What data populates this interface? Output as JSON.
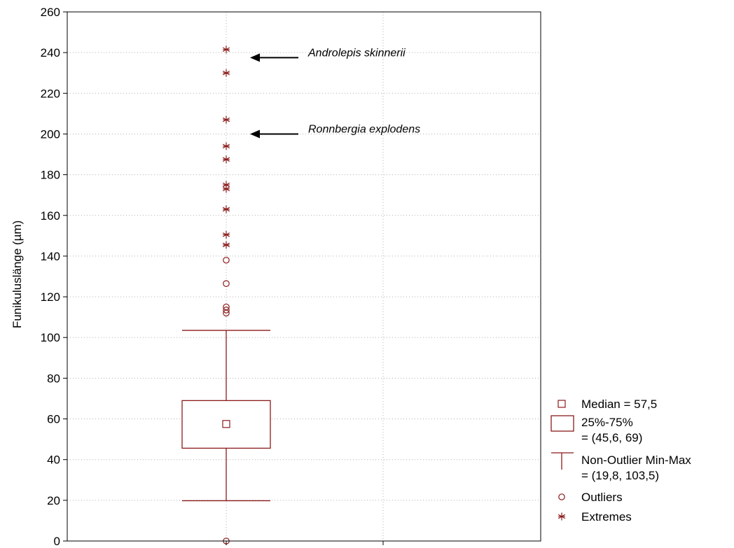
{
  "chart_data": {
    "type": "box",
    "title": "",
    "xlabel": "",
    "ylabel": "Funikuluslänge (µm)",
    "ylim": [
      0,
      260
    ],
    "yticks": [
      0,
      20,
      40,
      60,
      80,
      100,
      120,
      140,
      160,
      180,
      200,
      220,
      240,
      260
    ],
    "grid": true,
    "box": {
      "median": 57.5,
      "q1": 45.6,
      "q3": 69,
      "whisker_min": 19.8,
      "whisker_max": 103.5
    },
    "outliers": [
      0,
      112,
      113.5,
      115,
      126.5,
      138
    ],
    "extremes": [
      145.5,
      150.5,
      163,
      173,
      175,
      187.5,
      194,
      207,
      230,
      241.5
    ],
    "annotations": [
      {
        "text": "Androlepis skinnerii",
        "y": 237.5
      },
      {
        "text": "Ronnbergia explodens",
        "y": 200
      }
    ],
    "legend": {
      "position": "bottom-right",
      "entries": [
        {
          "symbol": "median-square",
          "lines": [
            "Median = 57,5"
          ]
        },
        {
          "symbol": "box",
          "lines": [
            "25%-75%",
            "= (45,6, 69)"
          ]
        },
        {
          "symbol": "whisker",
          "lines": [
            "Non-Outlier Min-Max",
            "= (19,8, 103,5)"
          ]
        },
        {
          "symbol": "circle",
          "lines": [
            "Outliers"
          ]
        },
        {
          "symbol": "asterisk",
          "lines": [
            "Extremes"
          ]
        }
      ]
    },
    "colors": {
      "series": "#8b1a1a",
      "grid": "#b0b0b0",
      "axis": "#000000",
      "arrow": "#000000"
    }
  }
}
